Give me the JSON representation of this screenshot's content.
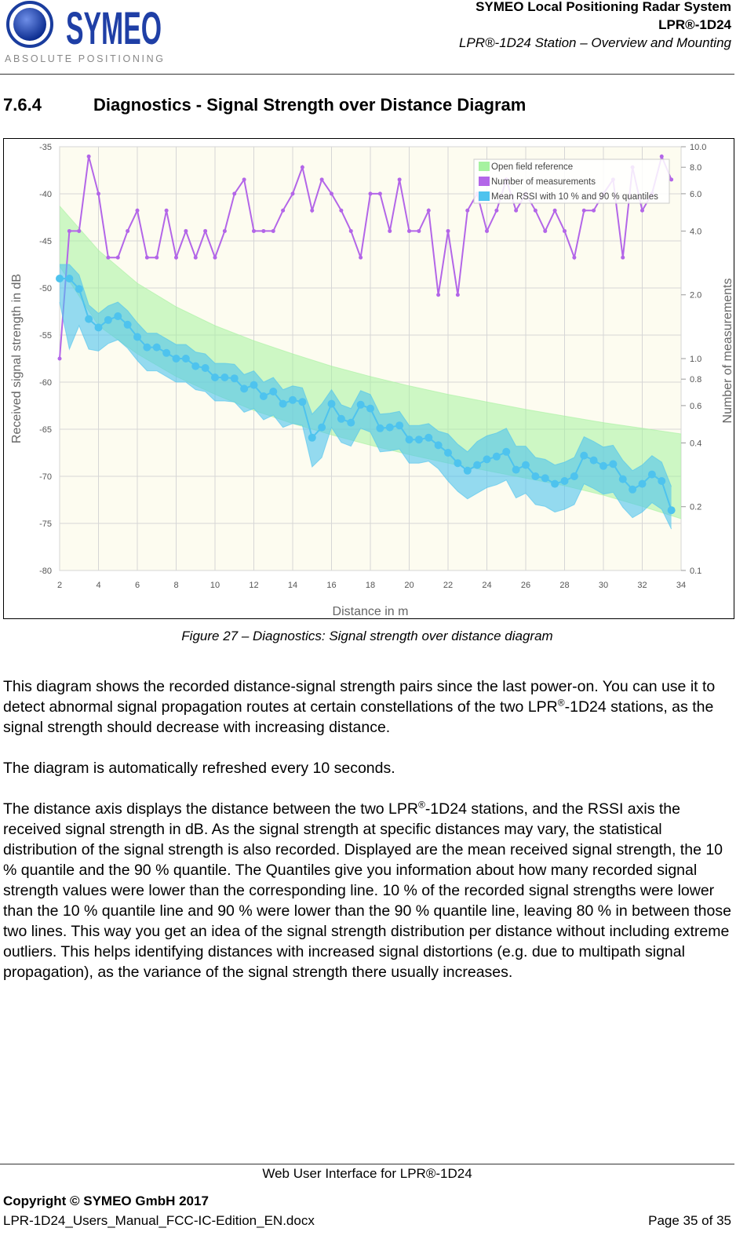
{
  "header": {
    "logo": {
      "name": "SYMEO",
      "tagline": "ABSOLUTE POSITIONING"
    },
    "lines": [
      "SYMEO Local Positioning Radar System",
      "LPR®-1D24",
      "LPR®-1D24 Station – Overview and Mounting"
    ]
  },
  "section": {
    "number": "7.6.4",
    "title": "Diagnostics - Signal Strength over Distance Diagram"
  },
  "chart_data": {
    "type": "line",
    "x_label": "Distance in m",
    "y_label": "Received signal strength in dB",
    "y2_label": "Number of measurements",
    "xlim": [
      2,
      34
    ],
    "xticks": [
      2,
      4,
      6,
      8,
      10,
      12,
      14,
      16,
      18,
      20,
      22,
      24,
      26,
      28,
      30,
      32,
      34
    ],
    "ylim": [
      -80,
      -35
    ],
    "yticks": [
      -35,
      -40,
      -45,
      -50,
      -55,
      -60,
      -65,
      -70,
      -75,
      -80
    ],
    "y2lim": [
      0.1,
      10
    ],
    "y2scale": "log",
    "y2ticks": [
      {
        "value": 10,
        "label": "10.0"
      },
      {
        "value": 8,
        "label": "8.0"
      },
      {
        "value": 6,
        "label": "6.0"
      },
      {
        "value": 4,
        "label": "4.0"
      },
      {
        "value": 2,
        "label": "2.0"
      },
      {
        "value": 1,
        "label": "1.0"
      },
      0.8,
      0.6,
      0.4,
      0.2,
      0.1
    ],
    "grid": true,
    "x": [
      2,
      2.5,
      3,
      3.5,
      4,
      4.5,
      5,
      5.5,
      6,
      6.5,
      7,
      7.5,
      8,
      8.5,
      9,
      9.5,
      10,
      10.5,
      11,
      11.5,
      12,
      12.5,
      13,
      13.5,
      14,
      14.5,
      15,
      15.5,
      16,
      16.5,
      17,
      17.5,
      18,
      18.5,
      19,
      19.5,
      20,
      20.5,
      21,
      21.5,
      22,
      22.5,
      23,
      23.5,
      24,
      24.5,
      25,
      25.5,
      26,
      26.5,
      27,
      27.5,
      28,
      28.5,
      29,
      29.5,
      30,
      30.5,
      31,
      31.5,
      32,
      32.5,
      33,
      33.5
    ],
    "series": [
      {
        "name": "Open field reference",
        "color": "#a6f2a0",
        "x": [
          2,
          4,
          6,
          8,
          10,
          12,
          14,
          16,
          18,
          20,
          22,
          24,
          26,
          28,
          30,
          32,
          34
        ],
        "high": [
          -41.3,
          -46,
          -49.5,
          -52,
          -54,
          -55.6,
          -57,
          -58.3,
          -59.4,
          -60.4,
          -61.3,
          -62.1,
          -62.9,
          -63.6,
          -64.3,
          -64.9,
          -65.5
        ],
        "low": [
          -47.7,
          -54,
          -57,
          -59.4,
          -61.3,
          -63,
          -64.4,
          -65.6,
          -66.7,
          -67.7,
          -68.6,
          -69.4,
          -70.2,
          -71,
          -72,
          -73.2,
          -74.5
        ]
      },
      {
        "name": "Number of measurements",
        "color": "#b366e8",
        "axis": "y2",
        "values": [
          1,
          4,
          4,
          9,
          6,
          3,
          3,
          4,
          5,
          3,
          3,
          5,
          3,
          4,
          3,
          4,
          3,
          4,
          6,
          7,
          4,
          4,
          4,
          5,
          6,
          8,
          5,
          7,
          6,
          5,
          4,
          3,
          6,
          6,
          4,
          7,
          4,
          4,
          5,
          2,
          4,
          2,
          5,
          6,
          4,
          5,
          7,
          5,
          6,
          5,
          4,
          5,
          4,
          3,
          5,
          5,
          6,
          7,
          3,
          8,
          5,
          6,
          9,
          7
        ]
      },
      {
        "name": "Mean RSSI with 10 % and 90 % quantiles",
        "color": "#4ec3ee",
        "values": [
          -49,
          -49,
          -50.1,
          -53.3,
          -54.2,
          -53.4,
          -53,
          -53.9,
          -55.2,
          -56.3,
          -56.3,
          -56.9,
          -57.5,
          -57.5,
          -58.3,
          -58.5,
          -59.5,
          -59.5,
          -59.6,
          -60.7,
          -60.3,
          -61.5,
          -61,
          -62.3,
          -61.9,
          -62.1,
          -65.9,
          -64.8,
          -62.3,
          -63.9,
          -64.3,
          -62.4,
          -62.8,
          -64.9,
          -64.8,
          -64.6,
          -66.1,
          -66.1,
          -65.9,
          -66.7,
          -67.5,
          -68.6,
          -69.4,
          -68.8,
          -68.2,
          -67.9,
          -67.4,
          -69.3,
          -68.8,
          -70,
          -70.2,
          -70.8,
          -70.5,
          -70,
          -67.8,
          -68.3,
          -68.9,
          -68.7,
          -70.3,
          -71.4,
          -70.8,
          -69.8,
          -70.5,
          -73.6
        ],
        "high": [
          -47.5,
          -47.5,
          -48.6,
          -51.8,
          -52.7,
          -51.9,
          -51.5,
          -52.4,
          -53.7,
          -54.8,
          -54.8,
          -55.4,
          -56,
          -56,
          -56.8,
          -57,
          -58,
          -58,
          -58.1,
          -59.2,
          -58.8,
          -60,
          -59.5,
          -60.8,
          -60.4,
          -60.6,
          -63.4,
          -62.3,
          -60.8,
          -62.4,
          -62.8,
          -60.9,
          -61.3,
          -63.4,
          -63.3,
          -63.1,
          -64.6,
          -64.6,
          -64.4,
          -65.2,
          -65.5,
          -66.6,
          -67.4,
          -66.3,
          -65.7,
          -65.4,
          -64.9,
          -66.8,
          -66.8,
          -68,
          -68.2,
          -68.8,
          -68.5,
          -68,
          -65.8,
          -66.3,
          -66.9,
          -66.7,
          -68.3,
          -69.4,
          -68.8,
          -67.8,
          -68.5,
          -71.1
        ],
        "low": [
          -51.5,
          -56.5,
          -54,
          -56.5,
          -56.7,
          -55.9,
          -55.5,
          -56.4,
          -57.7,
          -58.8,
          -58.8,
          -59.4,
          -60,
          -60,
          -60.8,
          -61,
          -62,
          -62,
          -62.1,
          -63.2,
          -62.8,
          -64,
          -63.5,
          -64.8,
          -64.4,
          -64.6,
          -69,
          -68,
          -64.8,
          -66.4,
          -66.8,
          -64.9,
          -65.3,
          -67.4,
          -67.3,
          -67.1,
          -68.6,
          -68.6,
          -68.4,
          -69.2,
          -70.5,
          -71.6,
          -72.4,
          -71.8,
          -71.2,
          -70.9,
          -70.4,
          -72.3,
          -71.8,
          -73,
          -73.2,
          -73.8,
          -73.5,
          -73,
          -70.8,
          -71.3,
          -71.9,
          -71.7,
          -73.3,
          -74.4,
          -73.8,
          -72.8,
          -73.5,
          -75.6
        ]
      }
    ]
  },
  "caption": "Figure 27 – Diagnostics: Signal strength over distance diagram",
  "paragraphs": [
    [
      {
        "text": "This diagram shows the recorded distance-signal strength pairs since the last power-on. You can use it to detect abnormal signal propagation routes at certain constellations of the two LPR"
      },
      {
        "sup": "®"
      },
      {
        "text": "-1D24 stations, as the signal strength should decrease with increasing distance."
      }
    ],
    [
      {
        "text": "The diagram is automatically refreshed every 10 seconds."
      }
    ],
    [
      {
        "text": "The distance axis displays the distance between the two LPR"
      },
      {
        "sup": "®"
      },
      {
        "text": "-1D24 stations, and the RSSI axis the received signal strength in dB. As the signal strength at specific distances may vary, the statistical distribution of the signal strength is also recorded. Displayed are the mean received signal strength, the 10 % quantile and the 90 % quantile. The Quantiles give you information about how many recorded signal strength values were lower than the corresponding line. 10 % of the recorded signal strengths were lower than the 10 % quantile line and 90 % were lower than the 90 % quantile line, leaving 80 % in between those two lines. This way you get an idea of the signal strength distribution per distance without including extreme outliers. This helps identifying distances with increased signal distortions (e.g. due to multipath signal propagation), as the variance of the signal strength there usually increases."
      }
    ]
  ],
  "footer": {
    "center": "Web User Interface for LPR®-1D24",
    "copyright": "Copyright © SYMEO GmbH 2017",
    "file": "LPR-1D24_Users_Manual_FCC-IC-Edition_EN.docx",
    "page": "Page 35 of 35"
  }
}
